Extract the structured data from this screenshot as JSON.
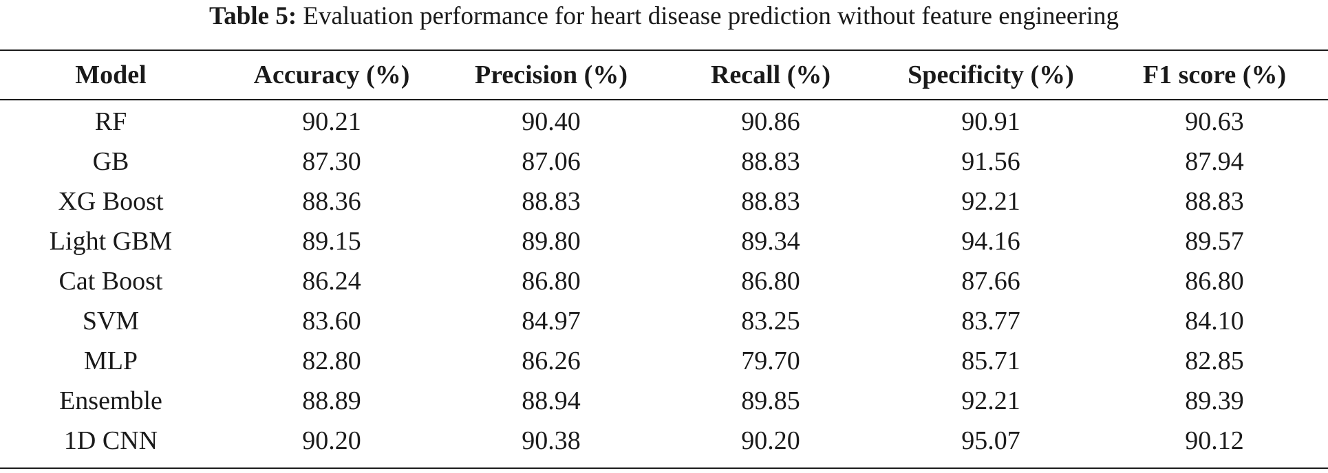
{
  "caption": {
    "label": "Table 5:",
    "text": "Evaluation performance for heart disease prediction without feature engineering"
  },
  "table": {
    "headers": [
      "Model",
      "Accuracy (%)",
      "Precision (%)",
      "Recall (%)",
      "Specificity (%)",
      "F1 score (%)"
    ],
    "rows": [
      [
        "RF",
        "90.21",
        "90.40",
        "90.86",
        "90.91",
        "90.63"
      ],
      [
        "GB",
        "87.30",
        "87.06",
        "88.83",
        "91.56",
        "87.94"
      ],
      [
        "XG Boost",
        "88.36",
        "88.83",
        "88.83",
        "92.21",
        "88.83"
      ],
      [
        "Light GBM",
        "89.15",
        "89.80",
        "89.34",
        "94.16",
        "89.57"
      ],
      [
        "Cat Boost",
        "86.24",
        "86.80",
        "86.80",
        "87.66",
        "86.80"
      ],
      [
        "SVM",
        "83.60",
        "84.97",
        "83.25",
        "83.77",
        "84.10"
      ],
      [
        "MLP",
        "82.80",
        "86.26",
        "79.70",
        "85.71",
        "82.85"
      ],
      [
        "Ensemble",
        "88.89",
        "88.94",
        "89.85",
        "92.21",
        "89.39"
      ],
      [
        "1D CNN",
        "90.20",
        "90.38",
        "90.20",
        "95.07",
        "90.12"
      ]
    ]
  }
}
